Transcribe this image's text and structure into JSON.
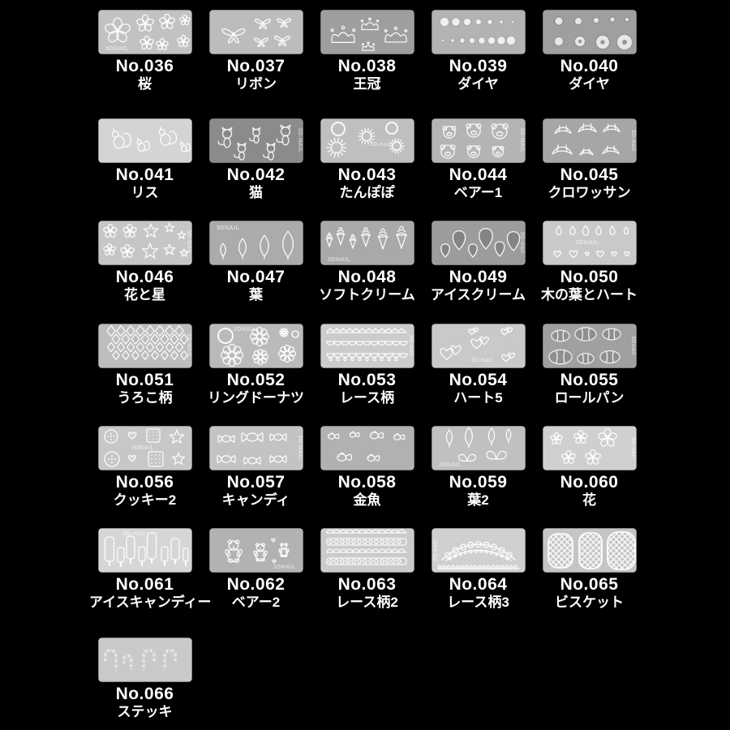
{
  "page": {
    "background": "#000000",
    "label_color": "#ffffff"
  },
  "items": [
    {
      "number": "No.036",
      "name": "桜",
      "motif": "sakura",
      "plate": "#c2c2c2",
      "watermark": "3DNAIL",
      "wm_pos": "bl"
    },
    {
      "number": "No.037",
      "name": "リボン",
      "motif": "bows",
      "plate": "#bcbcbc",
      "watermark": "",
      "wm_pos": ""
    },
    {
      "number": "No.038",
      "name": "王冠",
      "motif": "crowns",
      "plate": "#9e9e9e",
      "watermark": "",
      "wm_pos": ""
    },
    {
      "number": "No.039",
      "name": "ダイヤ",
      "motif": "dots",
      "plate": "#b3b3b3",
      "watermark": "",
      "wm_pos": ""
    },
    {
      "number": "No.040",
      "name": "ダイヤ",
      "motif": "gems",
      "plate": "#9f9f9f",
      "watermark": "",
      "wm_pos": ""
    },
    {
      "number": "No.041",
      "name": "リス",
      "motif": "squirrels",
      "plate": "#d4d4d4",
      "watermark": "",
      "wm_pos": ""
    },
    {
      "number": "No.042",
      "name": "猫",
      "motif": "cats",
      "plate": "#8b8b8b",
      "watermark": "3D-NAIL",
      "wm_pos": "r"
    },
    {
      "number": "No.043",
      "name": "たんぽぽ",
      "motif": "dandelion",
      "plate": "#bfbfbf",
      "watermark": "3D-nail",
      "wm_pos": "cr"
    },
    {
      "number": "No.044",
      "name": "ベアー1",
      "motif": "bearfaces",
      "plate": "#b4b4b4",
      "watermark": "3D-NAIL",
      "wm_pos": "r"
    },
    {
      "number": "No.045",
      "name": "クロワッサン",
      "motif": "croissants",
      "plate": "#a6a6a6",
      "watermark": "3D-nail",
      "wm_pos": "r"
    },
    {
      "number": "No.046",
      "name": "花と星",
      "motif": "flowerstars",
      "plate": "#c6c6c6",
      "watermark": "3D-NAIL",
      "wm_pos": "r"
    },
    {
      "number": "No.047",
      "name": "葉",
      "motif": "leaves",
      "plate": "#ababab",
      "watermark": "3DNAIL",
      "wm_pos": "tl"
    },
    {
      "number": "No.048",
      "name": "ソフトクリーム",
      "motif": "softserve",
      "plate": "#a9a9a9",
      "watermark": "3DNAIL",
      "wm_pos": "bl"
    },
    {
      "number": "No.049",
      "name": "アイスクリーム",
      "motif": "icecream",
      "plate": "#9c9c9c",
      "watermark": "3D-nail",
      "wm_pos": "r"
    },
    {
      "number": "No.050",
      "name": "木の葉とハート",
      "motif": "leafhearts",
      "plate": "#c9c9c9",
      "watermark": "3DNAIL",
      "wm_pos": "c"
    },
    {
      "number": "No.051",
      "name": "うろこ柄",
      "motif": "scales",
      "plate": "#bdbdbd",
      "watermark": "3D-NAIL",
      "wm_pos": "r"
    },
    {
      "number": "No.052",
      "name": "リングドーナツ",
      "motif": "donuts",
      "plate": "#bababa",
      "watermark": "3DNAIL",
      "wm_pos": "t"
    },
    {
      "number": "No.053",
      "name": "レース柄",
      "motif": "lace1",
      "plate": "#cccccc",
      "watermark": "3D-nail",
      "wm_pos": "r"
    },
    {
      "number": "No.054",
      "name": "ハート5",
      "motif": "hearts5",
      "plate": "#c9c9c9",
      "watermark": "3D-nail",
      "wm_pos": "bc"
    },
    {
      "number": "No.055",
      "name": "ロールパン",
      "motif": "rolls",
      "plate": "#a0a0a0",
      "watermark": "3Dnail",
      "wm_pos": "r"
    },
    {
      "number": "No.056",
      "name": "クッキー2",
      "motif": "cookies",
      "plate": "#c7c7c7",
      "watermark": "3DNAIL",
      "wm_pos": "c"
    },
    {
      "number": "No.057",
      "name": "キャンディ",
      "motif": "candies",
      "plate": "#c3c3c3",
      "watermark": "3D-NAIL",
      "wm_pos": "r"
    },
    {
      "number": "No.058",
      "name": "金魚",
      "motif": "goldfish",
      "plate": "#b1b1b1",
      "watermark": "",
      "wm_pos": ""
    },
    {
      "number": "No.059",
      "name": "葉2",
      "motif": "leaves2",
      "plate": "#c0c0c0",
      "watermark": "3DNAIL",
      "wm_pos": "bl"
    },
    {
      "number": "No.060",
      "name": "花",
      "motif": "flowers",
      "plate": "#cfcfcf",
      "watermark": "3D-nail",
      "wm_pos": "r"
    },
    {
      "number": "No.061",
      "name": "アイスキャンディー",
      "motif": "popsicles",
      "plate": "#d6d6d6",
      "watermark": "3D-nail",
      "wm_pos": "t"
    },
    {
      "number": "No.062",
      "name": "ベアー2",
      "motif": "bears2",
      "plate": "#b2b2b2",
      "watermark": "3DNAIL",
      "wm_pos": "br"
    },
    {
      "number": "No.063",
      "name": "レース柄2",
      "motif": "lace2",
      "plate": "#cbcbcb",
      "watermark": "",
      "wm_pos": ""
    },
    {
      "number": "No.064",
      "name": "レース柄3",
      "motif": "lace3",
      "plate": "#d0d0d0",
      "watermark": "3D-nail",
      "wm_pos": "l"
    },
    {
      "number": "No.065",
      "name": "ビスケット",
      "motif": "biscuits",
      "plate": "#c5c5c5",
      "watermark": "",
      "wm_pos": ""
    },
    {
      "number": "No.066",
      "name": "ステッキ",
      "motif": "canes",
      "plate": "#c9c9c9",
      "watermark": "",
      "wm_pos": ""
    }
  ]
}
